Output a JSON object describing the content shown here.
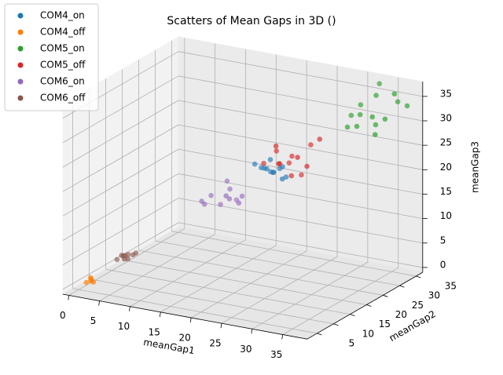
{
  "chart_data": {
    "type": "scatter3d",
    "title": "Scatters of Mean Gaps in 3D ()",
    "xlabel": "meanGap1",
    "ylabel": "meanGap2",
    "zlabel": "meanGap3",
    "xlim": [
      -1,
      39
    ],
    "ylim": [
      2,
      37
    ],
    "zlim": [
      -1,
      38
    ],
    "xticks": [
      0,
      5,
      10,
      15,
      20,
      25,
      30,
      35
    ],
    "yticks": [
      5,
      10,
      15,
      20,
      25,
      30,
      35
    ],
    "zticks": [
      0,
      5,
      10,
      15,
      20,
      25,
      30,
      35
    ],
    "grid": true,
    "legend": "upper left",
    "series": [
      {
        "name": "COM4_on",
        "color": "#1f77b4",
        "x": [
          18,
          19,
          20,
          21,
          22,
          19.5,
          20.5,
          21.5,
          18.5,
          22.5,
          20,
          21
        ],
        "y": [
          25,
          26,
          27,
          25,
          26,
          27,
          24,
          28,
          26,
          25,
          26,
          27
        ],
        "z": [
          21,
          20,
          19,
          20,
          21,
          19,
          21,
          18,
          20,
          19,
          22,
          20
        ]
      },
      {
        "name": "COM4_off",
        "color": "#ff7f0e",
        "x": [
          1.5,
          2,
          2.5,
          1.8,
          2.2,
          2.0
        ],
        "y": [
          4.5,
          5,
          4.8,
          5.2,
          4.6,
          5
        ],
        "z": [
          1,
          1.5,
          1.2,
          1.8,
          1.4,
          1.6
        ]
      },
      {
        "name": "COM5_on",
        "color": "#2ca02c",
        "x": [
          30,
          31,
          32,
          33,
          34,
          35,
          36,
          37,
          32,
          34,
          31,
          35,
          36,
          33
        ],
        "y": [
          32,
          33,
          30,
          34,
          31,
          33,
          35,
          36,
          31,
          32,
          29,
          30,
          34,
          35
        ],
        "z": [
          31,
          33,
          30,
          35,
          32,
          31,
          34,
          33,
          32,
          30,
          30,
          29,
          36,
          37
        ]
      },
      {
        "name": "COM5_off",
        "color": "#d62728",
        "x": [
          20,
          21,
          22,
          23,
          24,
          25,
          26,
          22,
          24,
          21,
          23,
          25,
          27
        ],
        "y": [
          24,
          26,
          28,
          27,
          25,
          29,
          26,
          24,
          28,
          27,
          23,
          25,
          28
        ],
        "z": [
          22,
          24,
          21,
          23,
          20,
          25,
          22,
          26,
          19,
          21,
          23,
          24,
          27
        ]
      },
      {
        "name": "COM6_on",
        "color": "#9467bd",
        "x": [
          12,
          13,
          14,
          15,
          16,
          17,
          14,
          16,
          15,
          13,
          17
        ],
        "y": [
          20,
          21,
          22,
          23,
          21,
          22,
          24,
          20,
          25,
          19,
          23
        ],
        "z": [
          14,
          15,
          13,
          16,
          15,
          14,
          17,
          16,
          13,
          14,
          15
        ]
      },
      {
        "name": "COM6_off",
        "color": "#8c564b",
        "x": [
          3,
          3.5,
          4,
          4.5,
          5,
          3.8,
          4.2,
          4.8,
          3.2
        ],
        "y": [
          11,
          12,
          12.5,
          11.5,
          13,
          12,
          11,
          12.5,
          12
        ],
        "z": [
          3.5,
          4,
          4.2,
          3.8,
          4.5,
          4.1,
          3.9,
          4.3,
          4
        ]
      }
    ]
  }
}
